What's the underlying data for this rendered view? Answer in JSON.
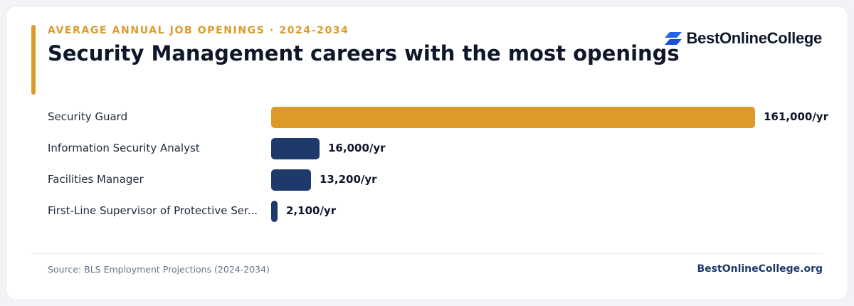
{
  "header": {
    "eyebrow": "AVERAGE ANNUAL JOB OPENINGS · 2024-2034",
    "title": "Security Management careers with the most openings"
  },
  "brand": {
    "logo_text": "BestOnlineCollege",
    "logo_icon": "stacked-parallelogram-logo-icon",
    "logo_color": "#2563eb"
  },
  "chart_data": {
    "type": "bar",
    "orientation": "horizontal",
    "title": "Security Management careers with the most openings",
    "subtitle": "AVERAGE ANNUAL JOB OPENINGS · 2024-2034",
    "categories": [
      "Security Guard",
      "Information Security Analyst",
      "Facilities Manager",
      "First-Line Supervisor of Protective Ser..."
    ],
    "values": [
      161000,
      16000,
      13200,
      2100
    ],
    "value_labels": [
      "161,000/yr",
      "16,000/yr",
      "13,200/yr",
      "2,100/yr"
    ],
    "unit": "/yr",
    "grid": false,
    "legend": "none",
    "colors": {
      "highlight": "#dc9b29",
      "default": "#1e3a6b"
    }
  },
  "footer": {
    "source": "Source: BLS Employment Projections (2024-2034)",
    "brand": "BestOnlineCollege.org"
  }
}
